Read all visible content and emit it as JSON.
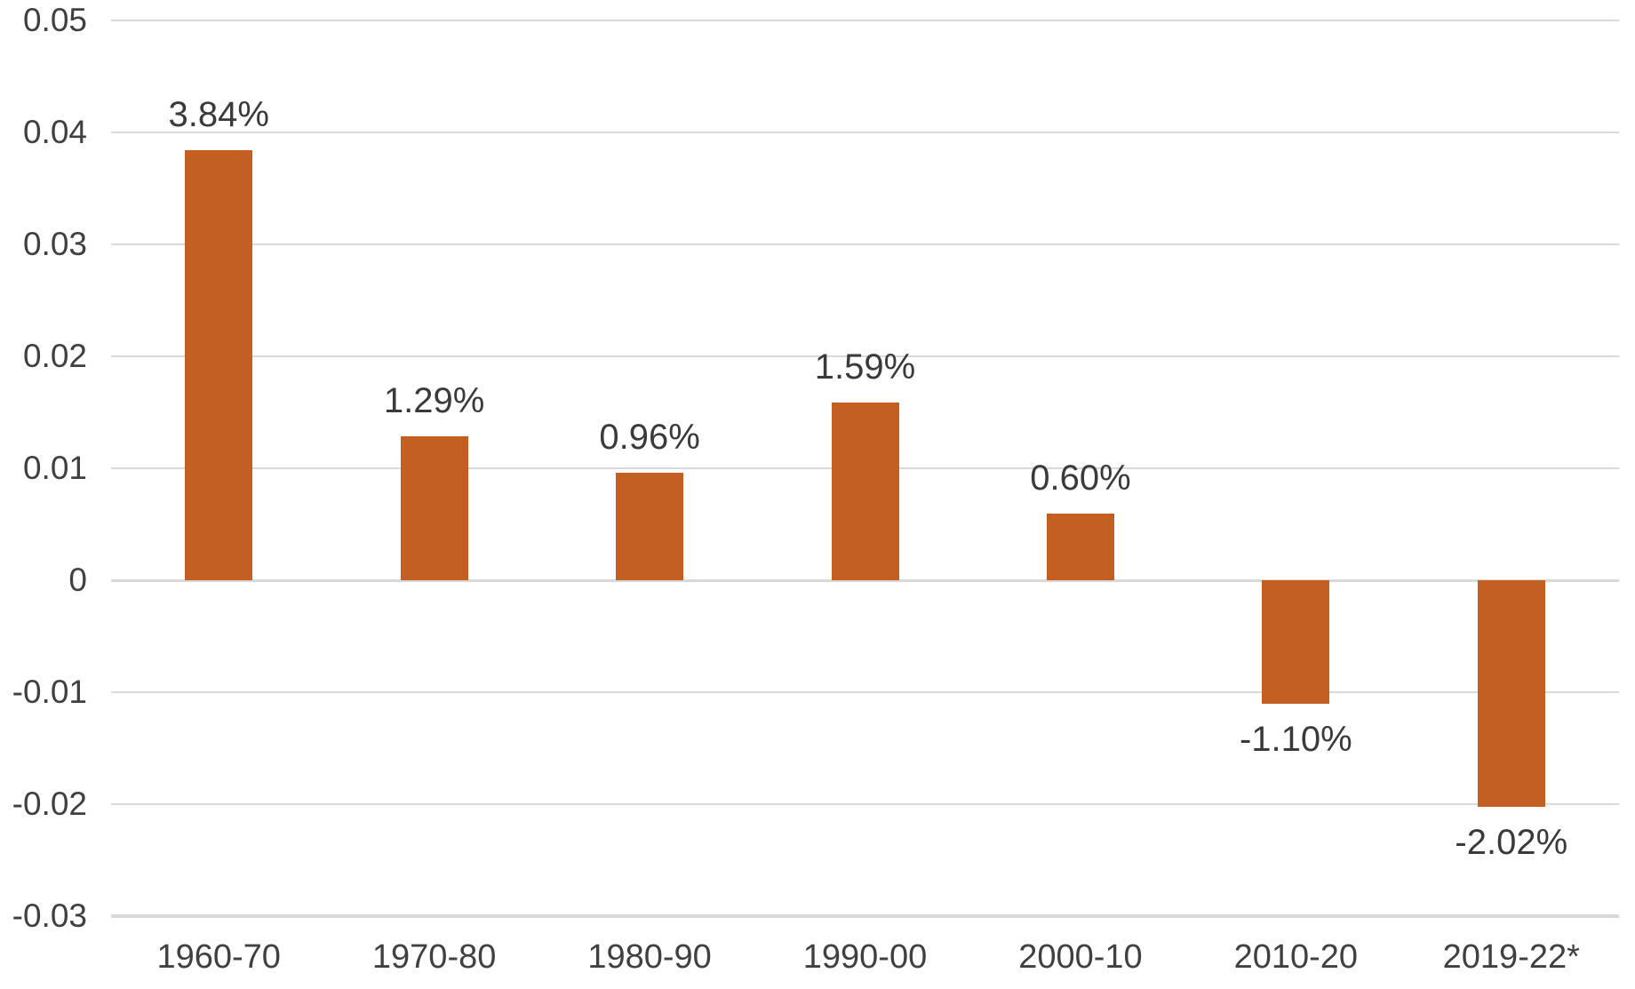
{
  "chart_data": {
    "type": "bar",
    "title": "",
    "xlabel": "",
    "ylabel": "",
    "legend": "none",
    "grid": true,
    "categories": [
      "1960-70",
      "1970-80",
      "1980-90",
      "1990-00",
      "2000-10",
      "2010-20",
      "2019-22*"
    ],
    "values": [
      0.0384,
      0.0129,
      0.0096,
      0.0159,
      0.006,
      -0.011,
      -0.0202
    ],
    "data_labels": [
      "3.84%",
      "1.29%",
      "0.96%",
      "1.59%",
      "0.60%",
      "-1.10%",
      "-2.02%"
    ],
    "y_ticks": [
      {
        "value": 0.05,
        "label": "0.05"
      },
      {
        "value": 0.04,
        "label": "0.04"
      },
      {
        "value": 0.03,
        "label": "0.03"
      },
      {
        "value": 0.02,
        "label": "0.02"
      },
      {
        "value": 0.01,
        "label": "0.01"
      },
      {
        "value": 0,
        "label": "0"
      },
      {
        "value": -0.01,
        "label": "-0.01"
      },
      {
        "value": -0.02,
        "label": "-0.02"
      },
      {
        "value": -0.03,
        "label": "-0.03"
      }
    ],
    "ylim": [
      -0.03,
      0.05
    ],
    "colors": {
      "bar": "#C35F21",
      "gridline": "#D9D9D9",
      "axis_line": "#D9D9D9",
      "axis_labels": "#404040",
      "data_labels": "#3A3A3A",
      "background": "#FFFFFF"
    }
  }
}
